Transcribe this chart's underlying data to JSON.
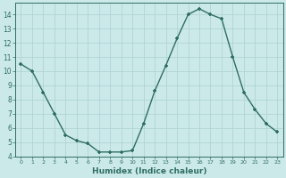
{
  "x": [
    0,
    1,
    2,
    3,
    4,
    5,
    6,
    7,
    8,
    9,
    10,
    11,
    12,
    13,
    14,
    15,
    16,
    17,
    18,
    19,
    20,
    21,
    22,
    23
  ],
  "y": [
    10.5,
    10.0,
    8.5,
    7.0,
    5.5,
    5.1,
    4.9,
    4.3,
    4.3,
    4.3,
    4.4,
    6.3,
    8.6,
    10.4,
    12.3,
    14.0,
    14.4,
    14.0,
    13.7,
    11.0,
    8.5,
    7.3,
    6.3,
    5.7
  ],
  "xlabel": "Humidex (Indice chaleur)",
  "bg_color": "#cce9e9",
  "grid_color": "#b0d4d4",
  "line_color": "#2e6e62",
  "marker_color": "#2e6e62",
  "xlim": [
    -0.5,
    23.5
  ],
  "ylim": [
    4,
    14.8
  ],
  "yticks": [
    4,
    5,
    6,
    7,
    8,
    9,
    10,
    11,
    12,
    13,
    14
  ],
  "xticks": [
    0,
    1,
    2,
    3,
    4,
    5,
    6,
    7,
    8,
    9,
    10,
    11,
    12,
    13,
    14,
    15,
    16,
    17,
    18,
    19,
    20,
    21,
    22,
    23
  ]
}
